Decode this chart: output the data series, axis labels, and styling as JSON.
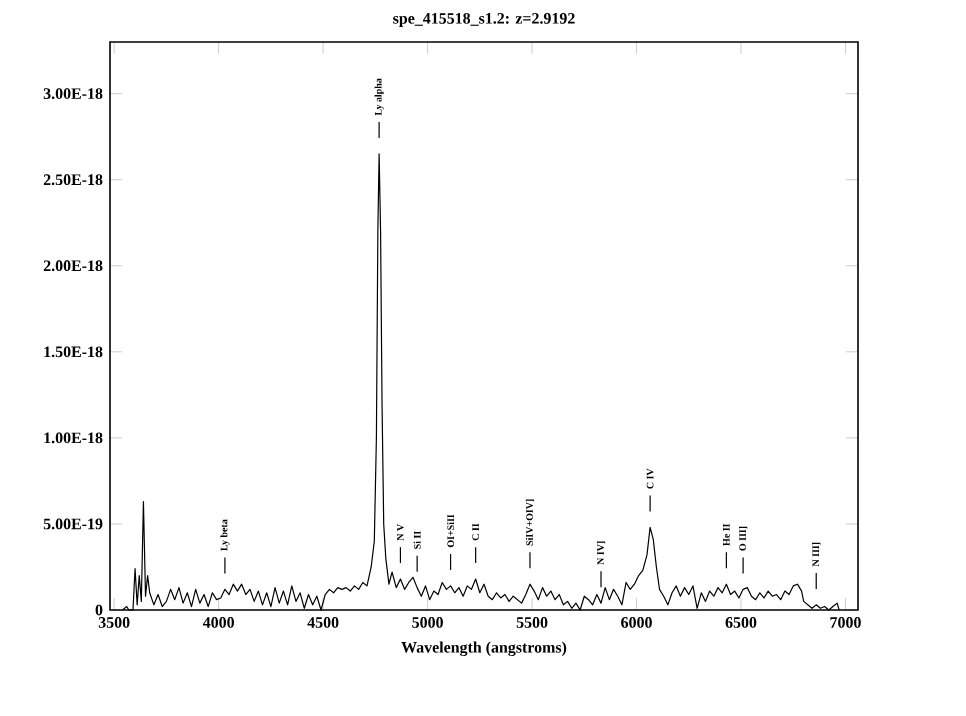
{
  "chart_data": {
    "type": "line",
    "title": "spe_415518_s1.2: z=2.9192",
    "xlabel": "Wavelength (angstroms)",
    "xlim": [
      3480,
      7060
    ],
    "ylim": [
      0,
      3.3e-18
    ],
    "xticks": [
      3500,
      4000,
      4500,
      5000,
      5500,
      6000,
      6500,
      7000
    ],
    "yticks": [
      {
        "value": 0,
        "label": "0"
      },
      {
        "value": 5e-19,
        "label": "5.00E-19"
      },
      {
        "value": 1e-18,
        "label": "1.00E-18"
      },
      {
        "value": 1.5e-18,
        "label": "1.50E-18"
      },
      {
        "value": 2e-18,
        "label": "2.00E-18"
      },
      {
        "value": 2.5e-18,
        "label": "2.50E-18"
      },
      {
        "value": 3e-18,
        "label": "3.00E-18"
      }
    ],
    "x": [
      3540,
      3560,
      3570,
      3590,
      3600,
      3610,
      3620,
      3630,
      3640,
      3650,
      3660,
      3670,
      3690,
      3710,
      3730,
      3750,
      3770,
      3790,
      3810,
      3830,
      3850,
      3870,
      3890,
      3910,
      3930,
      3950,
      3970,
      3990,
      4010,
      4030,
      4050,
      4070,
      4090,
      4110,
      4130,
      4150,
      4170,
      4190,
      4210,
      4230,
      4250,
      4270,
      4290,
      4310,
      4330,
      4350,
      4370,
      4390,
      4410,
      4430,
      4450,
      4470,
      4490,
      4510,
      4530,
      4550,
      4570,
      4590,
      4610,
      4630,
      4650,
      4670,
      4690,
      4710,
      4730,
      4745,
      4755,
      4762,
      4768,
      4775,
      4782,
      4790,
      4800,
      4815,
      4830,
      4850,
      4870,
      4890,
      4910,
      4930,
      4950,
      4970,
      4990,
      5010,
      5030,
      5050,
      5070,
      5090,
      5110,
      5130,
      5150,
      5170,
      5190,
      5210,
      5230,
      5250,
      5270,
      5290,
      5310,
      5330,
      5350,
      5370,
      5390,
      5410,
      5430,
      5450,
      5470,
      5490,
      5510,
      5530,
      5550,
      5570,
      5590,
      5610,
      5630,
      5650,
      5670,
      5690,
      5710,
      5730,
      5750,
      5770,
      5790,
      5810,
      5830,
      5850,
      5870,
      5890,
      5910,
      5930,
      5950,
      5970,
      5990,
      6010,
      6030,
      6050,
      6065,
      6080,
      6095,
      6110,
      6130,
      6150,
      6170,
      6190,
      6210,
      6230,
      6250,
      6270,
      6290,
      6310,
      6330,
      6350,
      6370,
      6390,
      6410,
      6430,
      6450,
      6470,
      6490,
      6510,
      6530,
      6550,
      6570,
      6590,
      6610,
      6630,
      6650,
      6670,
      6690,
      6710,
      6730,
      6750,
      6770,
      6790,
      6800,
      6820,
      6840,
      6860,
      6880,
      6900,
      6920,
      6940,
      6960,
      6970
    ],
    "series": [
      {
        "color": "#000000",
        "values": [
          0,
          2e-20,
          0,
          0,
          2.4e-19,
          3e-20,
          2e-19,
          5e-20,
          6.3e-19,
          8e-20,
          2e-19,
          1e-19,
          3e-20,
          9e-20,
          2e-20,
          5e-20,
          1.2e-19,
          6e-20,
          1.3e-19,
          4e-20,
          1e-19,
          2e-20,
          1.2e-19,
          4e-20,
          9e-20,
          2e-20,
          1e-19,
          6e-20,
          7e-20,
          1.2e-19,
          9e-20,
          1.5e-19,
          1.1e-19,
          1.5e-19,
          9e-20,
          1.2e-19,
          5e-20,
          1.1e-19,
          3e-20,
          1e-19,
          2e-20,
          1.3e-19,
          4e-20,
          1.1e-19,
          3e-20,
          1.4e-19,
          5e-20,
          1e-19,
          1e-20,
          9e-20,
          3e-20,
          8e-20,
          0,
          9e-20,
          1.2e-19,
          1e-19,
          1.3e-19,
          1.2e-19,
          1.3e-19,
          1.1e-19,
          1.4e-19,
          1.2e-19,
          1.6e-19,
          1.4e-19,
          2.5e-19,
          4e-19,
          1e-18,
          2.2e-18,
          2.65e-18,
          2.2e-18,
          1.2e-18,
          5e-19,
          3e-19,
          1.5e-19,
          2.2e-19,
          1.3e-19,
          1.8e-19,
          1.2e-19,
          1.6e-19,
          1.9e-19,
          1.3e-19,
          8e-20,
          1.4e-19,
          6e-20,
          1.1e-19,
          9e-20,
          1.6e-19,
          1.2e-19,
          1.4e-19,
          1e-19,
          1.3e-19,
          8e-20,
          1.4e-19,
          1.2e-19,
          1.8e-19,
          1e-19,
          1.5e-19,
          8e-20,
          6e-20,
          1e-19,
          7e-20,
          9e-20,
          5e-20,
          8e-20,
          6e-20,
          4e-20,
          9e-20,
          1.5e-19,
          1.1e-19,
          6e-20,
          1.3e-19,
          8e-20,
          1.1e-19,
          6e-20,
          9e-20,
          3e-20,
          5e-20,
          1e-20,
          4e-20,
          0,
          8e-20,
          6e-20,
          3e-20,
          9e-20,
          4e-20,
          1.3e-19,
          6e-20,
          1.2e-19,
          8e-20,
          3e-20,
          1.6e-19,
          1.2e-19,
          1.5e-19,
          2e-19,
          2.3e-19,
          3.2e-19,
          4.8e-19,
          4.1e-19,
          2.5e-19,
          1.2e-19,
          8e-20,
          3e-20,
          1e-19,
          1.4e-19,
          8e-20,
          1.3e-19,
          9e-20,
          1.4e-19,
          1e-20,
          1e-19,
          5e-20,
          1.1e-19,
          8e-20,
          1.3e-19,
          1e-19,
          1.5e-19,
          9e-20,
          1.1e-19,
          7e-20,
          1.2e-19,
          1.3e-19,
          8e-20,
          6e-20,
          1e-19,
          7e-20,
          1.1e-19,
          8e-20,
          9e-20,
          6e-20,
          1.1e-19,
          9e-20,
          1.4e-19,
          1.5e-19,
          1.1e-19,
          5e-20,
          3e-20,
          1e-20,
          3e-20,
          1e-20,
          2e-20,
          0,
          2e-20,
          4e-20,
          0
        ]
      }
    ],
    "annotations": [
      {
        "text": "Ly alpha",
        "x": 4768,
        "y": 2.65e-18
      },
      {
        "text": "Ly beta",
        "x": 4030,
        "y": 1.2e-19
      },
      {
        "text": "N V",
        "x": 4870,
        "y": 1.8e-19
      },
      {
        "text": "Si II",
        "x": 4950,
        "y": 1.3e-19
      },
      {
        "text": "OI+SiII",
        "x": 5110,
        "y": 1.4e-19
      },
      {
        "text": "C II",
        "x": 5230,
        "y": 1.8e-19
      },
      {
        "text": "SiIV+OIV]",
        "x": 5490,
        "y": 1.5e-19
      },
      {
        "text": "N IV]",
        "x": 5830,
        "y": 4e-20
      },
      {
        "text": "C IV",
        "x": 6065,
        "y": 4.8e-19
      },
      {
        "text": "He II",
        "x": 6430,
        "y": 1.5e-19
      },
      {
        "text": "O III]",
        "x": 6510,
        "y": 1.2e-19
      },
      {
        "text": "N III]",
        "x": 6860,
        "y": 3e-20
      }
    ]
  }
}
